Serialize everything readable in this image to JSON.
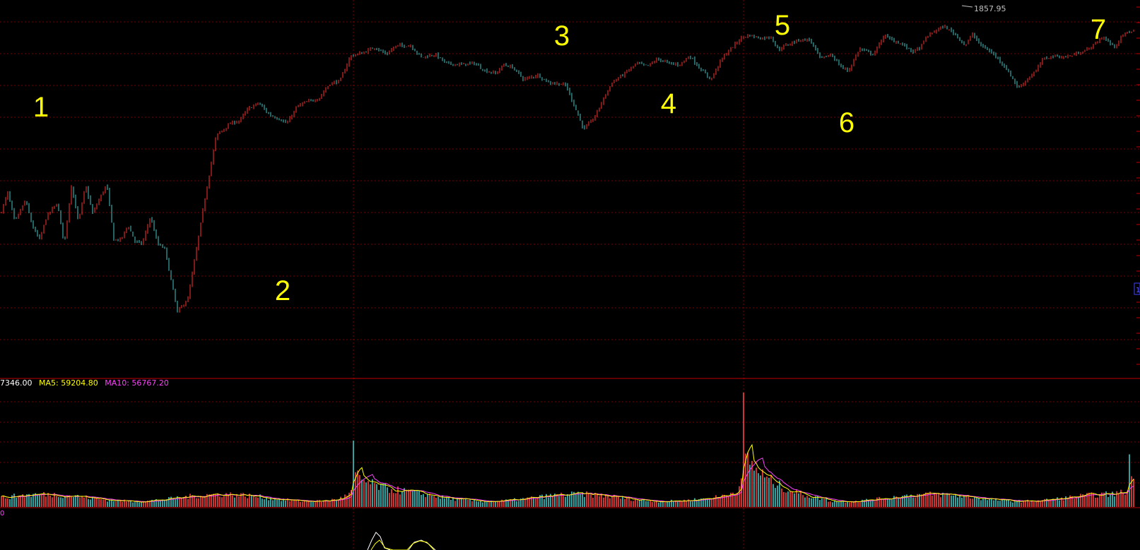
{
  "chart_data": [
    {
      "type": "candlestick",
      "panel": "price",
      "peak_label": "1857.95",
      "axis_marker": "1",
      "wave_labels": [
        "1",
        "2",
        "3",
        "4",
        "5",
        "6",
        "7"
      ],
      "close_path": [
        [
          0,
          1725
        ],
        [
          10,
          1739
        ],
        [
          20,
          1719
        ],
        [
          35,
          1734
        ],
        [
          45,
          1716
        ],
        [
          55,
          1707
        ],
        [
          65,
          1723
        ],
        [
          80,
          1732
        ],
        [
          90,
          1704
        ],
        [
          100,
          1744
        ],
        [
          110,
          1719
        ],
        [
          120,
          1744
        ],
        [
          130,
          1725
        ],
        [
          150,
          1745
        ],
        [
          160,
          1707
        ],
        [
          170,
          1707
        ],
        [
          180,
          1717
        ],
        [
          190,
          1706
        ],
        [
          200,
          1704
        ],
        [
          212,
          1723
        ],
        [
          222,
          1704
        ],
        [
          232,
          1701
        ],
        [
          250,
          1658
        ],
        [
          265,
          1667
        ],
        [
          275,
          1695
        ],
        [
          290,
          1738
        ],
        [
          305,
          1778
        ],
        [
          325,
          1786
        ],
        [
          338,
          1788
        ],
        [
          350,
          1796
        ],
        [
          365,
          1800
        ],
        [
          380,
          1792
        ],
        [
          395,
          1789
        ],
        [
          405,
          1786
        ],
        [
          420,
          1798
        ],
        [
          435,
          1801
        ],
        [
          450,
          1803
        ],
        [
          465,
          1813
        ],
        [
          480,
          1815
        ],
        [
          495,
          1832
        ],
        [
          512,
          1834
        ],
        [
          530,
          1838
        ],
        [
          545,
          1833
        ],
        [
          560,
          1839
        ],
        [
          580,
          1839
        ],
        [
          595,
          1831
        ],
        [
          615,
          1833
        ],
        [
          630,
          1827
        ],
        [
          650,
          1826
        ],
        [
          670,
          1827
        ],
        [
          685,
          1822
        ],
        [
          700,
          1820
        ],
        [
          712,
          1826
        ],
        [
          725,
          1824
        ],
        [
          740,
          1816
        ],
        [
          760,
          1819
        ],
        [
          775,
          1814
        ],
        [
          790,
          1813
        ],
        [
          800,
          1812
        ],
        [
          825,
          1782
        ],
        [
          840,
          1790
        ],
        [
          855,
          1805
        ],
        [
          865,
          1814
        ],
        [
          880,
          1819
        ],
        [
          900,
          1827
        ],
        [
          915,
          1825
        ],
        [
          930,
          1830
        ],
        [
          945,
          1827
        ],
        [
          960,
          1826
        ],
        [
          975,
          1832
        ],
        [
          990,
          1823
        ],
        [
          1005,
          1816
        ],
        [
          1020,
          1830
        ],
        [
          1035,
          1838
        ],
        [
          1050,
          1845
        ],
        [
          1060,
          1846
        ],
        [
          1075,
          1844
        ],
        [
          1090,
          1845
        ],
        [
          1100,
          1836
        ],
        [
          1110,
          1839
        ],
        [
          1120,
          1841
        ],
        [
          1130,
          1843
        ],
        [
          1145,
          1843
        ],
        [
          1160,
          1830
        ],
        [
          1175,
          1833
        ],
        [
          1190,
          1824
        ],
        [
          1200,
          1822
        ],
        [
          1215,
          1837
        ],
        [
          1235,
          1833
        ],
        [
          1250,
          1846
        ],
        [
          1260,
          1843
        ],
        [
          1275,
          1840
        ],
        [
          1290,
          1835
        ],
        [
          1300,
          1837
        ],
        [
          1310,
          1845
        ],
        [
          1325,
          1850
        ],
        [
          1335,
          1852
        ],
        [
          1350,
          1847
        ],
        [
          1365,
          1839
        ],
        [
          1375,
          1847
        ],
        [
          1385,
          1840
        ],
        [
          1400,
          1835
        ],
        [
          1410,
          1831
        ],
        [
          1420,
          1825
        ],
        [
          1430,
          1818
        ],
        [
          1440,
          1810
        ],
        [
          1450,
          1815
        ],
        [
          1465,
          1822
        ],
        [
          1475,
          1830
        ],
        [
          1490,
          1832
        ],
        [
          1505,
          1831
        ],
        [
          1520,
          1833
        ],
        [
          1540,
          1837
        ],
        [
          1560,
          1845
        ],
        [
          1575,
          1838
        ],
        [
          1590,
          1847
        ],
        [
          1605,
          1850
        ]
      ]
    },
    {
      "type": "bar",
      "panel": "volume",
      "legend": [
        {
          "name": "",
          "text": "7346.00",
          "color": "#ffffff"
        },
        {
          "name": "MA5",
          "text": "MA5: 59204.80",
          "color": "#ffff00"
        },
        {
          "name": "MA10",
          "text": "MA10: 56767.20",
          "color": "#ff40ff"
        }
      ],
      "colors": {
        "up": "#ff4040",
        "down": "#40c8c8",
        "ma5": "#ffff00",
        "ma10": "#ff40ff"
      },
      "spikes": [
        {
          "x": 498,
          "value": 58
        },
        {
          "x": 1050,
          "value": 100
        },
        {
          "x": 1598,
          "value": 46
        }
      ]
    },
    {
      "type": "line",
      "panel": "indicator",
      "label": "0"
    }
  ],
  "colors": {
    "background": "#000000",
    "grid": "#7a0000",
    "panel_border": "#c00000",
    "candle_up": "#ff3030",
    "candle_down": "#40c8c8",
    "label": "#ffff00",
    "peak_text": "#c0c0c0",
    "axis_marker": "#4040ff"
  }
}
